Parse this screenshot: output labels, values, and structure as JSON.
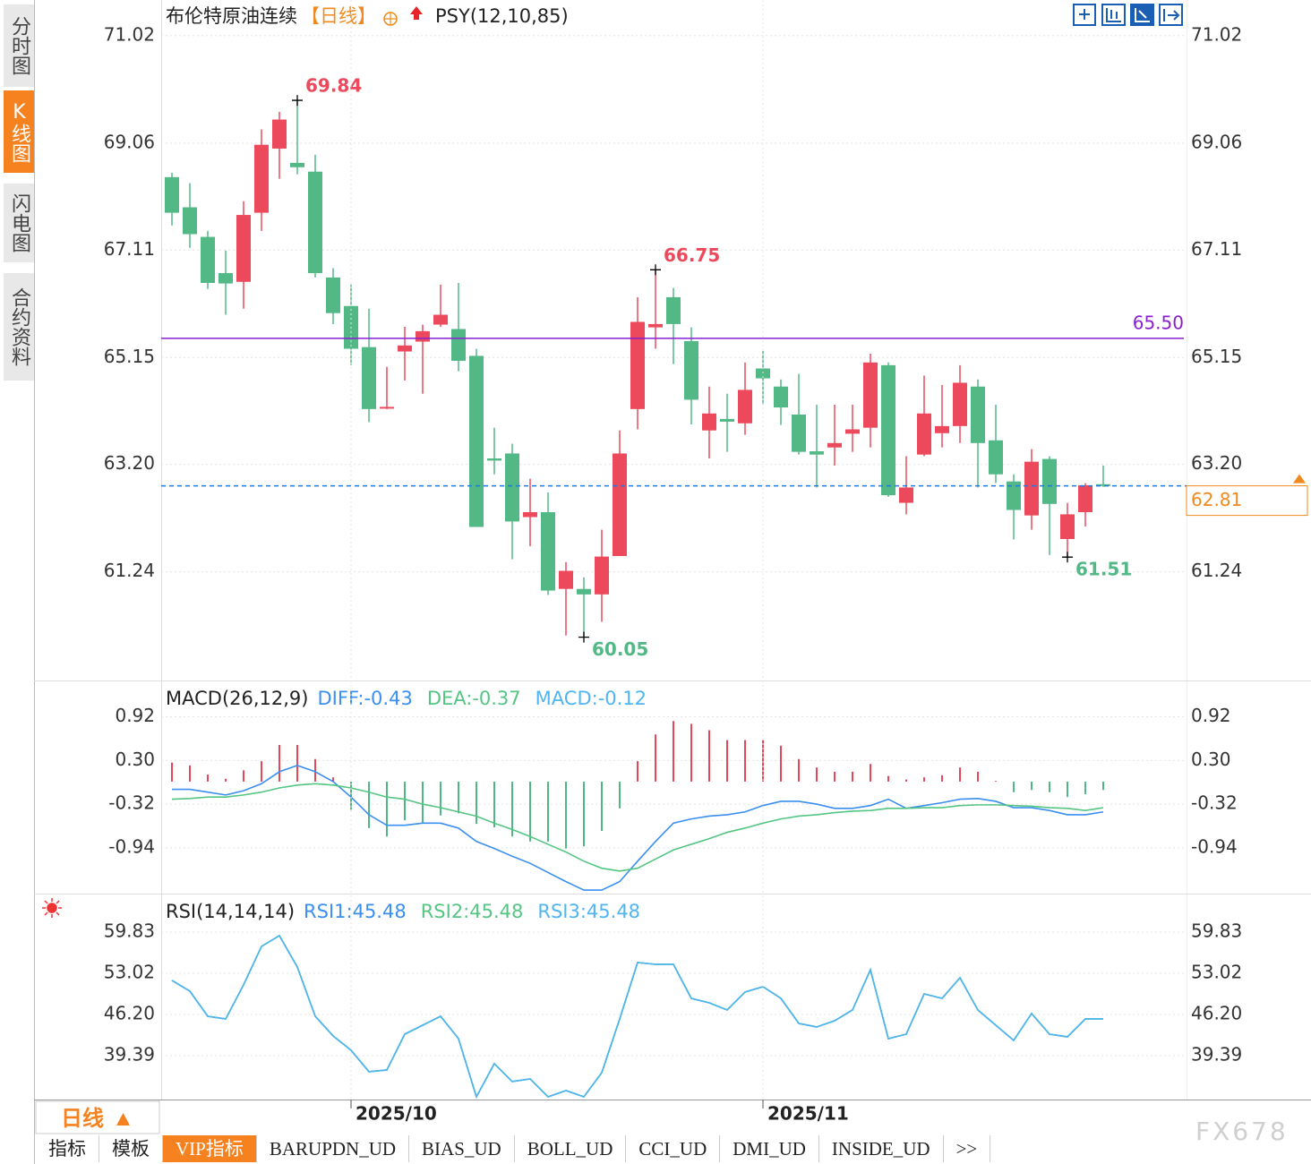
{
  "sidebar": {
    "tabs": [
      "分时图",
      "K线图",
      "闪电图",
      "合约资料"
    ],
    "active": 1
  },
  "chart_data": [
    {
      "type": "candlestick",
      "title": "布伦特原油连续",
      "period": "【日线】",
      "indicator": "PSY(12,10,85)",
      "categories": [
        null,
        null,
        null,
        null,
        null,
        null,
        null,
        null,
        null,
        null,
        "2025/10",
        null,
        null,
        null,
        null,
        null,
        null,
        null,
        null,
        null,
        null,
        null,
        null,
        null,
        null,
        null,
        null,
        null,
        null,
        null,
        null,
        null,
        null,
        "2025/11",
        null,
        null,
        null,
        null,
        null,
        null,
        null,
        null,
        null,
        null,
        null,
        null,
        null,
        null,
        null,
        null,
        null,
        null,
        null
      ],
      "open": [
        68.44,
        67.89,
        67.35,
        66.69,
        66.53,
        67.79,
        68.96,
        68.7,
        68.54,
        66.61,
        66.09,
        65.34,
        64.22,
        65.26,
        65.44,
        65.75,
        65.67,
        65.18,
        63.31,
        63.4,
        62.24,
        62.33,
        60.93,
        60.93,
        60.83,
        61.53,
        64.21,
        65.7,
        66.25,
        65.45,
        63.82,
        64.03,
        63.95,
        64.95,
        64.62,
        64.11,
        63.44,
        63.51,
        63.76,
        63.87,
        65.01,
        62.5,
        63.38,
        63.77,
        63.9,
        64.62,
        63.64,
        62.89,
        62.27,
        63.3,
        61.84,
        62.33,
        62.84
      ],
      "high": [
        68.52,
        68.33,
        67.46,
        67.1,
        68.0,
        69.31,
        69.63,
        69.84,
        68.85,
        66.78,
        66.48,
        66.04,
        64.98,
        65.71,
        65.75,
        66.48,
        66.51,
        65.31,
        63.87,
        63.58,
        62.94,
        62.69,
        61.42,
        61.14,
        62.01,
        63.82,
        66.25,
        66.75,
        66.42,
        65.7,
        64.62,
        64.49,
        65.06,
        65.27,
        64.75,
        64.85,
        64.29,
        64.29,
        64.29,
        65.22,
        65.06,
        63.35,
        64.82,
        64.65,
        65.01,
        64.75,
        64.29,
        63.02,
        63.48,
        63.35,
        62.5,
        62.86,
        63.18
      ],
      "low": [
        67.56,
        67.15,
        66.4,
        65.93,
        66.04,
        67.46,
        68.41,
        68.49,
        66.61,
        65.76,
        65.01,
        63.97,
        64.21,
        64.73,
        64.49,
        65.71,
        64.9,
        62.06,
        63.02,
        61.47,
        61.71,
        60.82,
        60.08,
        60.05,
        60.33,
        61.53,
        63.84,
        65.31,
        65.03,
        63.93,
        63.31,
        63.43,
        63.74,
        64.29,
        63.92,
        63.38,
        62.78,
        63.18,
        63.43,
        63.51,
        62.61,
        62.29,
        63.35,
        63.51,
        63.59,
        62.78,
        62.86,
        61.83,
        62.01,
        61.55,
        61.51,
        62.07,
        62.79
      ],
      "close": [
        67.79,
        67.4,
        66.51,
        66.5,
        67.75,
        69.03,
        69.49,
        68.62,
        66.69,
        65.96,
        65.31,
        64.21,
        64.25,
        65.37,
        65.63,
        65.93,
        65.09,
        62.06,
        63.27,
        62.16,
        62.33,
        60.9,
        61.26,
        60.83,
        61.52,
        63.4,
        65.8,
        65.76,
        65.76,
        64.38,
        64.13,
        63.98,
        64.56,
        64.77,
        64.24,
        63.43,
        63.38,
        63.59,
        63.84,
        65.06,
        62.64,
        62.78,
        64.13,
        63.9,
        64.69,
        63.59,
        63.02,
        62.37,
        63.25,
        62.48,
        62.29,
        62.82,
        62.81
      ],
      "up_color": "#ec4a5c",
      "down_color": "#52b886",
      "ylim": [
        59.26,
        71.67
      ],
      "yticks": [
        61.24,
        {
          "value": 63.2,
          "label": "63.20"
        },
        65.15,
        67.11,
        69.06,
        71.02
      ],
      "grid": true,
      "reference_lines": [
        {
          "value": 65.5,
          "label": "65.50",
          "color": "#8a1fd0"
        }
      ],
      "last_price": {
        "value": 62.81,
        "color": "#1e7be0",
        "label_color": "#f08a1e"
      },
      "annotations": [
        {
          "value": 69.84
        },
        {
          "value": 66.75
        },
        {
          "value": 60.05
        },
        {
          "value": 61.51
        }
      ]
    },
    {
      "type": "combo",
      "title": "MACD(26,12,9)",
      "ylim": [
        -1.59,
        1.41
      ],
      "yticks": [
        -0.94,
        -0.32,
        {
          "value": 0.3,
          "label": "0.30"
        },
        0.92
      ],
      "grid": true,
      "series": [
        {
          "name": "DIFF:-0.43",
          "type": "line",
          "color": "#3a8ff0",
          "values": [
            -0.11,
            -0.11,
            -0.15,
            -0.19,
            -0.13,
            -0.03,
            0.14,
            0.23,
            0.14,
            0.0,
            -0.22,
            -0.47,
            -0.62,
            -0.62,
            -0.59,
            -0.59,
            -0.66,
            -0.85,
            -0.95,
            -1.06,
            -1.16,
            -1.29,
            -1.42,
            -1.54,
            -1.54,
            -1.42,
            -1.13,
            -0.85,
            -0.59,
            -0.53,
            -0.49,
            -0.47,
            -0.43,
            -0.34,
            -0.28,
            -0.28,
            -0.32,
            -0.38,
            -0.38,
            -0.34,
            -0.25,
            -0.38,
            -0.34,
            -0.3,
            -0.25,
            -0.24,
            -0.28,
            -0.37,
            -0.37,
            -0.41,
            -0.47,
            -0.47,
            -0.43
          ]
        },
        {
          "name": "DEA:-0.37",
          "type": "line",
          "color": "#55c583",
          "values": [
            -0.25,
            -0.24,
            -0.22,
            -0.22,
            -0.19,
            -0.15,
            -0.09,
            -0.05,
            -0.03,
            -0.05,
            -0.09,
            -0.15,
            -0.22,
            -0.25,
            -0.32,
            -0.37,
            -0.43,
            -0.49,
            -0.59,
            -0.68,
            -0.78,
            -0.89,
            -1.0,
            -1.13,
            -1.23,
            -1.27,
            -1.23,
            -1.1,
            -0.97,
            -0.89,
            -0.81,
            -0.72,
            -0.66,
            -0.59,
            -0.53,
            -0.49,
            -0.47,
            -0.44,
            -0.42,
            -0.41,
            -0.38,
            -0.38,
            -0.37,
            -0.37,
            -0.34,
            -0.33,
            -0.33,
            -0.34,
            -0.35,
            -0.37,
            -0.38,
            -0.41,
            -0.37
          ]
        },
        {
          "name": "MACD:-0.12",
          "type": "bar",
          "color": "#4fb5f2",
          "up_color": "#e8475a",
          "down_color": "#4fb883",
          "values": [
            0.27,
            0.23,
            0.1,
            0.04,
            0.16,
            0.29,
            0.52,
            0.52,
            0.32,
            0.06,
            -0.4,
            -0.66,
            -0.78,
            -0.55,
            -0.59,
            -0.48,
            -0.45,
            -0.6,
            -0.65,
            -0.78,
            -0.85,
            -0.85,
            -0.95,
            -0.92,
            -0.7,
            -0.38,
            0.29,
            0.67,
            0.86,
            0.82,
            0.73,
            0.59,
            0.59,
            0.59,
            0.51,
            0.32,
            0.2,
            0.14,
            0.14,
            0.25,
            0.08,
            0.03,
            0.06,
            0.09,
            0.2,
            0.14,
            0.01,
            -0.15,
            -0.12,
            -0.15,
            -0.22,
            -0.18,
            -0.12
          ]
        }
      ]
    },
    {
      "type": "line",
      "title": "RSI(14,14,14)",
      "ylim": [
        32.14,
        65.9
      ],
      "yticks": [
        39.39,
        {
          "value": 46.2,
          "label": "46.20"
        },
        53.02,
        59.83
      ],
      "grid": true,
      "series": [
        {
          "name": "RSI1:45.48",
          "type": "line",
          "color": "#3a8ff0",
          "values": [
            51.84,
            50.06,
            45.91,
            45.47,
            51.1,
            57.46,
            59.24,
            54.06,
            45.91,
            42.66,
            40.29,
            36.74,
            37.03,
            42.95,
            44.43,
            45.91,
            42.21,
            32.59,
            38.07,
            35.11,
            35.55,
            32.59,
            33.63,
            32.59,
            36.59,
            45.47,
            54.8,
            54.5,
            54.5,
            48.87,
            48.13,
            46.95,
            49.91,
            50.8,
            48.87,
            44.73,
            44.14,
            45.17,
            46.95,
            53.61,
            42.21,
            42.95,
            49.61,
            48.87,
            52.28,
            46.95,
            44.43,
            41.92,
            46.36,
            42.95,
            42.51,
            45.47,
            45.48
          ]
        },
        {
          "name": "RSI2:45.48",
          "type": "line",
          "color": "#55c583",
          "values": [
            51.84,
            50.06,
            45.91,
            45.47,
            51.1,
            57.46,
            59.24,
            54.06,
            45.91,
            42.66,
            40.29,
            36.74,
            37.03,
            42.95,
            44.43,
            45.91,
            42.21,
            32.59,
            38.07,
            35.11,
            35.55,
            32.59,
            33.63,
            32.59,
            36.59,
            45.47,
            54.8,
            54.5,
            54.5,
            48.87,
            48.13,
            46.95,
            49.91,
            50.8,
            48.87,
            44.73,
            44.14,
            45.17,
            46.95,
            53.61,
            42.21,
            42.95,
            49.61,
            48.87,
            52.28,
            46.95,
            44.43,
            41.92,
            46.36,
            42.95,
            42.51,
            45.47,
            45.48
          ]
        },
        {
          "name": "RSI3:45.48",
          "type": "line",
          "color": "#4fb5f2",
          "values": [
            51.84,
            50.06,
            45.91,
            45.47,
            51.1,
            57.46,
            59.24,
            54.06,
            45.91,
            42.66,
            40.29,
            36.74,
            37.03,
            42.95,
            44.43,
            45.91,
            42.21,
            32.59,
            38.07,
            35.11,
            35.55,
            32.59,
            33.63,
            32.59,
            36.59,
            45.47,
            54.8,
            54.5,
            54.5,
            48.87,
            48.13,
            46.95,
            49.91,
            50.8,
            48.87,
            44.73,
            44.14,
            45.17,
            46.95,
            53.61,
            42.21,
            42.95,
            49.61,
            48.87,
            52.28,
            46.95,
            44.43,
            41.92,
            46.36,
            42.95,
            42.51,
            45.47,
            45.48
          ]
        }
      ]
    }
  ],
  "footer": {
    "period": "日线",
    "tabs": [
      "指标",
      "模板",
      "VIP指标",
      "BARUPDN_UD",
      "BIAS_UD",
      "BOLL_UD",
      "CCI_UD",
      "DMI_UD",
      "INSIDE_UD",
      ">>"
    ],
    "active_tab": 2
  },
  "watermark": "FX678"
}
